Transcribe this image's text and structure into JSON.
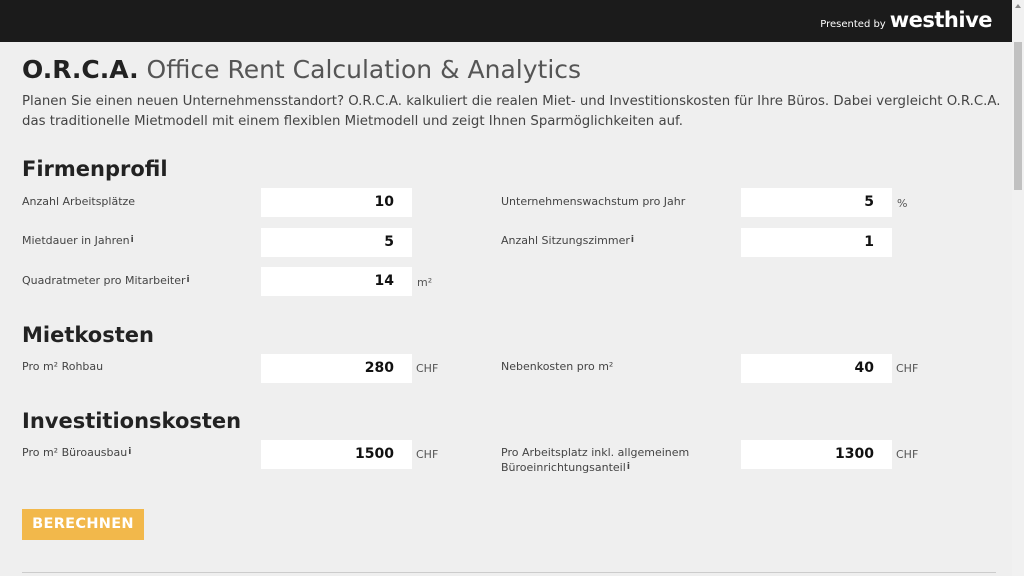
{
  "header": {
    "presented_by": "Presented by",
    "brand": "westhive"
  },
  "title": {
    "acronym": "O.R.C.A.",
    "full": "Office Rent Calculation & Analytics"
  },
  "description": "Planen Sie einen neuen Unternehmensstandort? O.R.C.A. kalkuliert die realen Miet- und Investitionskosten für Ihre Büros. Dabei vergleicht O.R.C.A. das traditionelle Mietmodell mit einem flexiblen Mietmodell und zeigt Ihnen Sparmöglichkeiten auf.",
  "info_glyph": "i",
  "sections": {
    "firmenprofil": {
      "heading": "Firmenprofil",
      "arbeitsplaetze": {
        "label": "Anzahl Arbeitsplätze",
        "value": "10"
      },
      "wachstum": {
        "label": "Unternehmenswachstum pro Jahr",
        "value": "5",
        "unit": "%"
      },
      "mietdauer": {
        "label": "Mietdauer in Jahren",
        "value": "5"
      },
      "sitzungszimmer": {
        "label": "Anzahl Sitzungszimmer",
        "value": "1"
      },
      "qm": {
        "label": "Quadratmeter pro Mitarbeiter",
        "value": "14",
        "unit": "m²"
      }
    },
    "mietkosten": {
      "heading": "Mietkosten",
      "rohbau": {
        "label": "Pro m² Rohbau",
        "value": "280",
        "unit": "CHF"
      },
      "nebenkosten": {
        "label": "Nebenkosten pro m²",
        "value": "40",
        "unit": "CHF"
      }
    },
    "investition": {
      "heading": "Investitionskosten",
      "ausbau": {
        "label": "Pro m² Büroausbau",
        "value": "1500",
        "unit": "CHF"
      },
      "arbeitsplatz": {
        "label_line1": "Pro Arbeitsplatz inkl. allgemeinem",
        "label_line2": "Büroeinrichtungsanteil",
        "value": "1300",
        "unit": "CHF"
      }
    }
  },
  "calculate_label": "BERECHNEN"
}
